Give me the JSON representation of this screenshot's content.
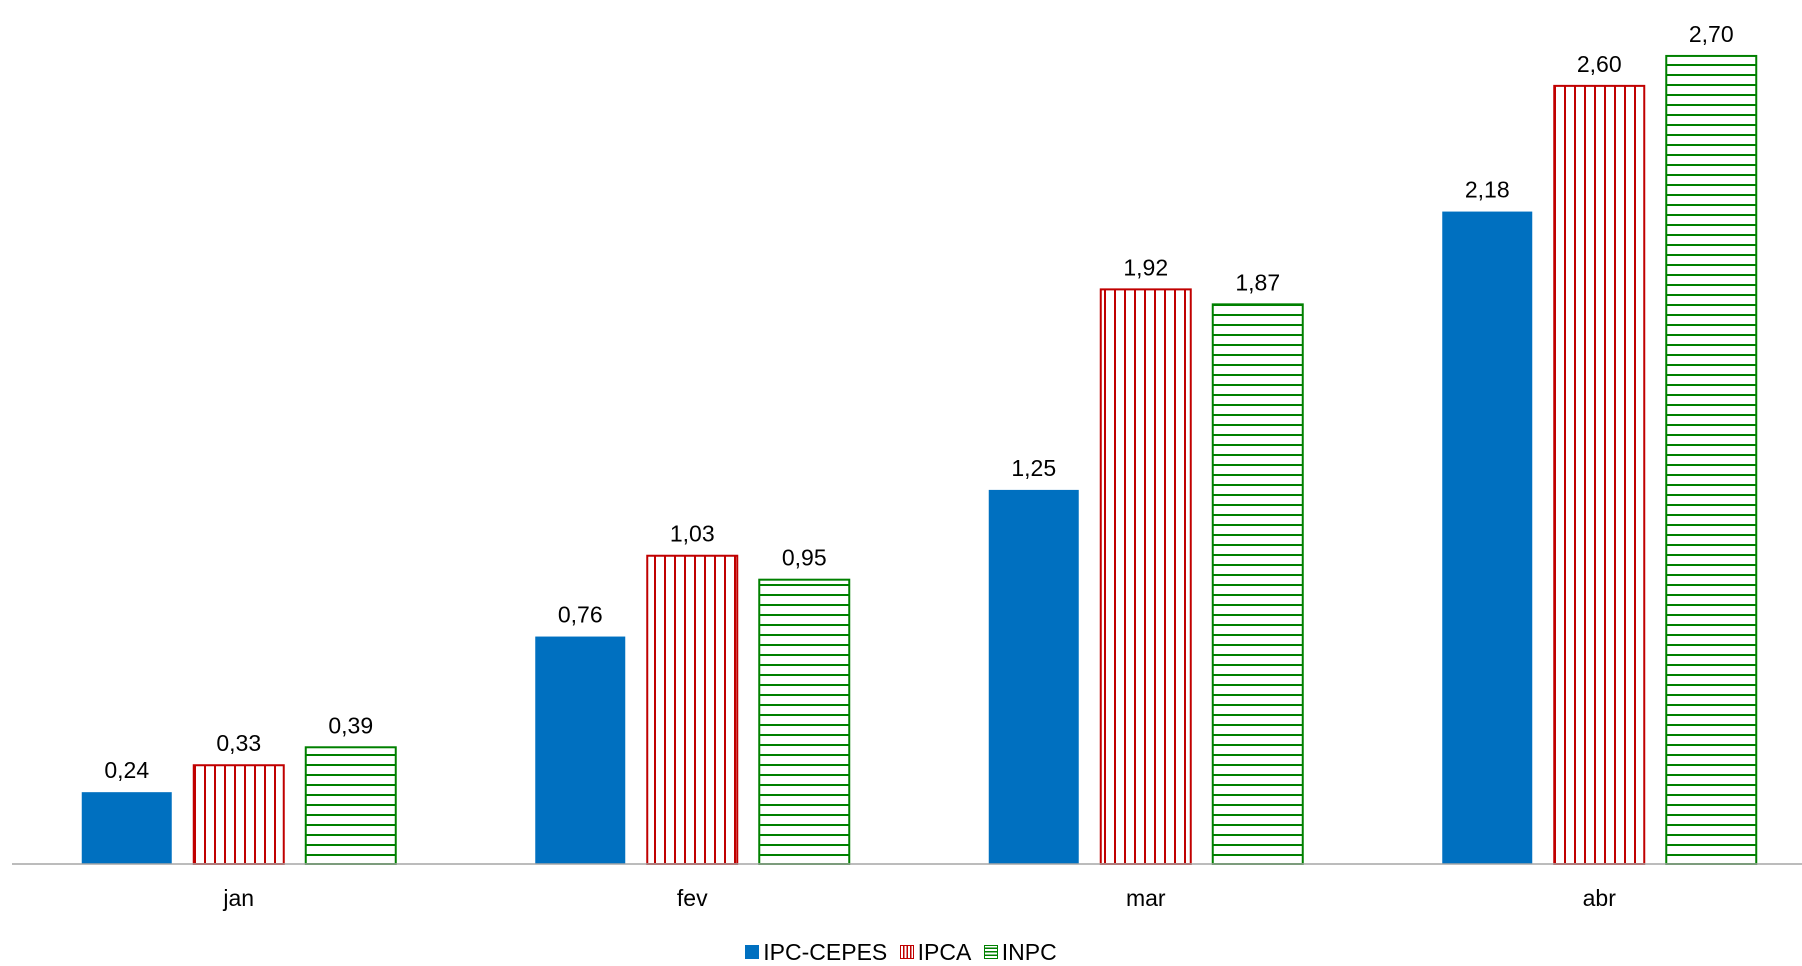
{
  "chart_data": {
    "type": "bar",
    "categories": [
      "jan",
      "fev",
      "mar",
      "abr"
    ],
    "series": [
      {
        "name": "IPC-CEPES",
        "values": [
          0.24,
          0.76,
          1.25,
          2.18
        ],
        "labels": [
          "0,24",
          "0,76",
          "1,25",
          "2,18"
        ],
        "color": "#0070C0",
        "pattern": "solid"
      },
      {
        "name": "IPCA",
        "values": [
          0.33,
          1.03,
          1.92,
          2.6
        ],
        "labels": [
          "0,33",
          "1,03",
          "1,92",
          "2,60"
        ],
        "color": "#C00000",
        "pattern": "vertical-lines"
      },
      {
        "name": "INPC",
        "values": [
          0.39,
          0.95,
          1.87,
          2.7
        ],
        "labels": [
          "0,39",
          "0,95",
          "1,87",
          "2,70"
        ],
        "color": "#008000",
        "pattern": "horizontal-lines"
      }
    ],
    "ylim": [
      0,
      2.78
    ],
    "grid": false,
    "legend_position": "bottom"
  }
}
